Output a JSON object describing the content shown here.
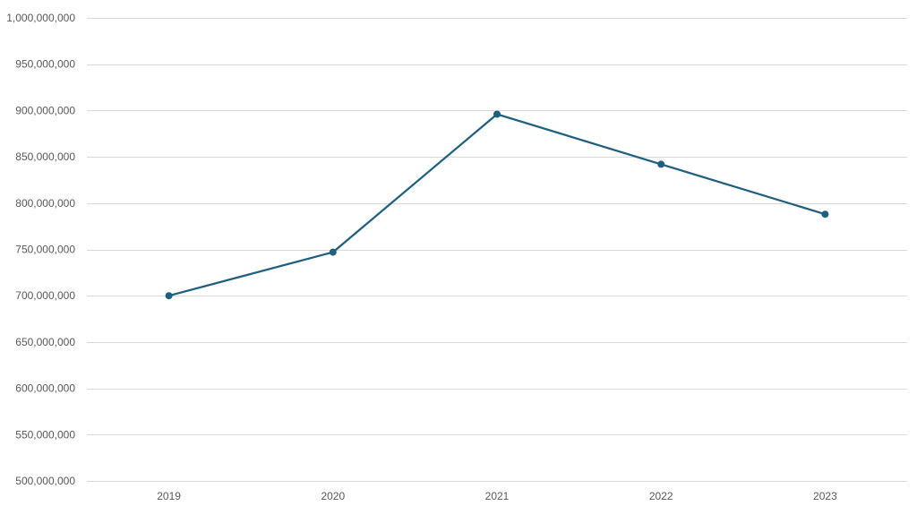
{
  "chart_data": {
    "type": "line",
    "title": "",
    "xlabel": "",
    "ylabel": "",
    "categories": [
      "2019",
      "2020",
      "2021",
      "2022",
      "2023"
    ],
    "series": [
      {
        "values": [
          700000000,
          747000000,
          896000000,
          842000000,
          788000000
        ]
      }
    ],
    "ylim": [
      500000000,
      1000000000
    ],
    "y_ticks": [
      500000000,
      550000000,
      600000000,
      650000000,
      700000000,
      750000000,
      800000000,
      850000000,
      900000000,
      950000000,
      1000000000
    ],
    "y_tick_labels": [
      "500,000,000",
      "550,000,000",
      "600,000,000",
      "650,000,000",
      "700,000,000",
      "750,000,000",
      "800,000,000",
      "850,000,000",
      "900,000,000",
      "950,000,000",
      "1,000,000,000"
    ],
    "grid": true,
    "legend": "none",
    "markers": true,
    "colors": {
      "series": "#1f5f7f",
      "grid": "#d9d9d9",
      "tick_text": "#595959"
    }
  }
}
